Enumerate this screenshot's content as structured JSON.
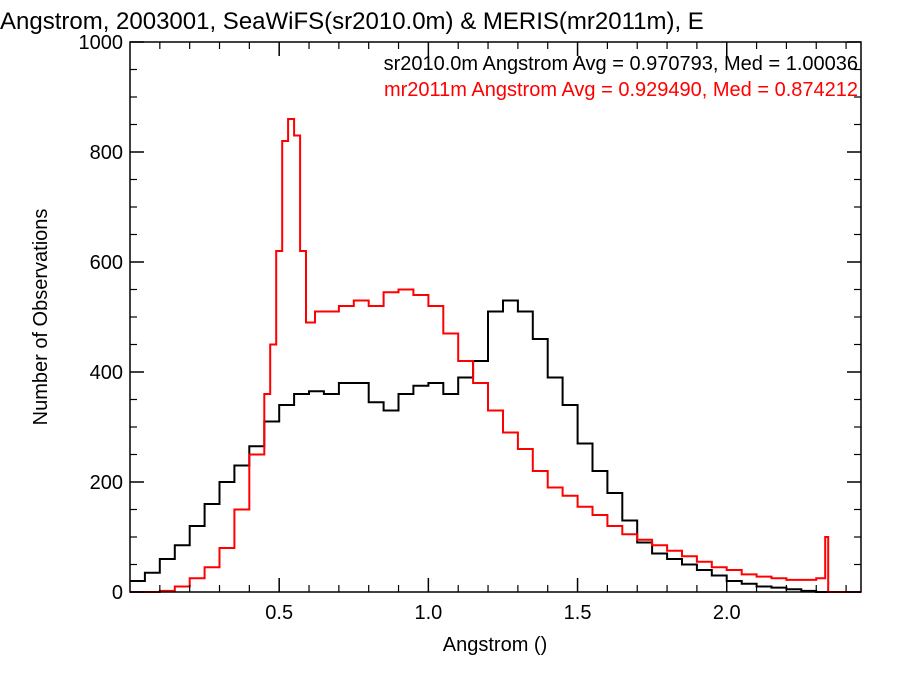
{
  "chart_data": {
    "type": "line",
    "title": "Angstrom, 2003001, SeaWiFS(sr2010.0m) & MERIS(mr2011m), E",
    "xlabel": "Angstrom ()",
    "ylabel": "Number of Observations",
    "xlim": [
      0.0,
      2.45
    ],
    "ylim": [
      0,
      1000
    ],
    "x_ticks": [
      0.5,
      1.0,
      1.5,
      2.0
    ],
    "x_tick_labels": [
      "0.5",
      "1.0",
      "1.5",
      "2.0"
    ],
    "y_ticks": [
      0,
      200,
      400,
      600,
      800,
      1000
    ],
    "y_tick_labels": [
      "0",
      "200",
      "400",
      "600",
      "800",
      "1000"
    ],
    "grid": false,
    "legend_position": "top-right",
    "series": [
      {
        "name": "sr2010.0m",
        "legend_text": "sr2010.0m Angstrom Avg = 0.970793, Med = 1.00036",
        "color": "#000000",
        "x": [
          0.0,
          0.05,
          0.1,
          0.15,
          0.2,
          0.25,
          0.3,
          0.35,
          0.4,
          0.45,
          0.5,
          0.55,
          0.6,
          0.65,
          0.7,
          0.75,
          0.8,
          0.85,
          0.9,
          0.95,
          1.0,
          1.05,
          1.1,
          1.15,
          1.2,
          1.25,
          1.3,
          1.35,
          1.4,
          1.45,
          1.5,
          1.55,
          1.6,
          1.65,
          1.7,
          1.75,
          1.8,
          1.85,
          1.9,
          1.95,
          2.0,
          2.05,
          2.1,
          2.15,
          2.2,
          2.25,
          2.3,
          2.35,
          2.4,
          2.45
        ],
        "values": [
          20,
          35,
          60,
          85,
          120,
          160,
          200,
          230,
          265,
          310,
          340,
          360,
          365,
          360,
          380,
          380,
          345,
          330,
          360,
          375,
          380,
          360,
          390,
          420,
          510,
          530,
          510,
          460,
          390,
          340,
          270,
          220,
          180,
          130,
          90,
          70,
          60,
          50,
          40,
          30,
          20,
          15,
          10,
          8,
          5,
          2,
          0,
          0,
          0,
          0
        ]
      },
      {
        "name": "mr2011m",
        "legend_text": "mr2011m Angstrom Avg = 0.929490, Med = 0.874212",
        "color": "#ff0000",
        "x": [
          0.0,
          0.05,
          0.1,
          0.15,
          0.2,
          0.25,
          0.3,
          0.35,
          0.4,
          0.45,
          0.47,
          0.49,
          0.51,
          0.53,
          0.55,
          0.57,
          0.59,
          0.62,
          0.65,
          0.7,
          0.75,
          0.8,
          0.85,
          0.9,
          0.95,
          1.0,
          1.05,
          1.1,
          1.15,
          1.2,
          1.25,
          1.3,
          1.35,
          1.4,
          1.45,
          1.5,
          1.55,
          1.6,
          1.65,
          1.7,
          1.75,
          1.8,
          1.85,
          1.9,
          1.95,
          2.0,
          2.05,
          2.1,
          2.15,
          2.2,
          2.25,
          2.3,
          2.33,
          2.34,
          2.35,
          2.4,
          2.45
        ],
        "values": [
          0,
          0,
          2,
          10,
          25,
          45,
          80,
          150,
          250,
          360,
          450,
          620,
          820,
          860,
          830,
          620,
          490,
          510,
          510,
          520,
          530,
          520,
          545,
          550,
          540,
          520,
          470,
          420,
          380,
          330,
          290,
          260,
          220,
          190,
          175,
          155,
          140,
          120,
          105,
          95,
          85,
          75,
          65,
          55,
          45,
          40,
          32,
          28,
          25,
          22,
          22,
          25,
          100,
          0,
          0,
          0,
          0
        ]
      }
    ]
  }
}
